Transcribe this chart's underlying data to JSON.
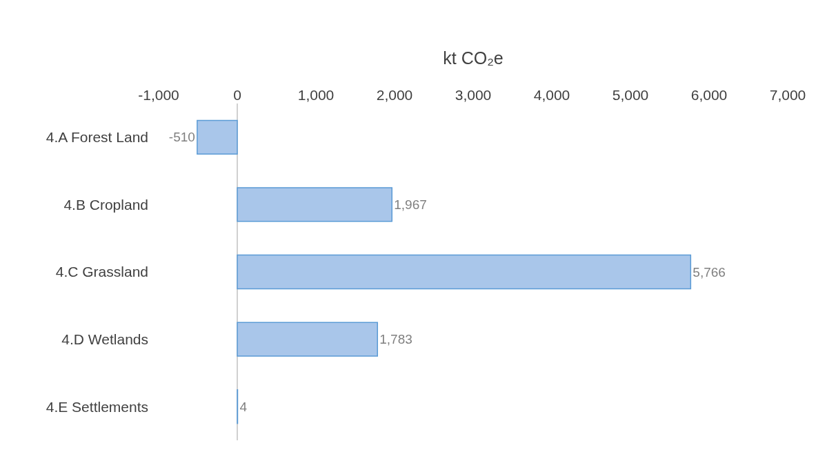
{
  "chart_data": {
    "type": "bar",
    "orientation": "horizontal",
    "xlabel": "kt CO₂e",
    "categories": [
      "4.A Forest Land",
      "4.B Cropland",
      "4.C Grassland",
      "4.D Wetlands",
      "4.E Settlements"
    ],
    "values": [
      -510,
      1967,
      5766,
      1783,
      4
    ],
    "value_labels": [
      "-510",
      "1,967",
      "5,766",
      "1,783",
      "4"
    ],
    "color": "#a9c6ea",
    "xlim": [
      -1000,
      7000
    ],
    "xticks": [
      {
        "value": -1000,
        "label": "-1,000"
      },
      0,
      {
        "value": 1000,
        "label": "1,000"
      },
      {
        "value": 2000,
        "label": "2,000"
      },
      {
        "value": 3000,
        "label": "3,000"
      },
      {
        "value": 4000,
        "label": "4,000"
      },
      {
        "value": 5000,
        "label": "5,000"
      },
      {
        "value": 6000,
        "label": "6,000"
      },
      {
        "value": 7000,
        "label": "7,000"
      }
    ],
    "ref_lines": [
      {
        "axis": "x",
        "value": 0,
        "color": "#d0d0d0"
      }
    ],
    "grid": false,
    "legend": false
  }
}
